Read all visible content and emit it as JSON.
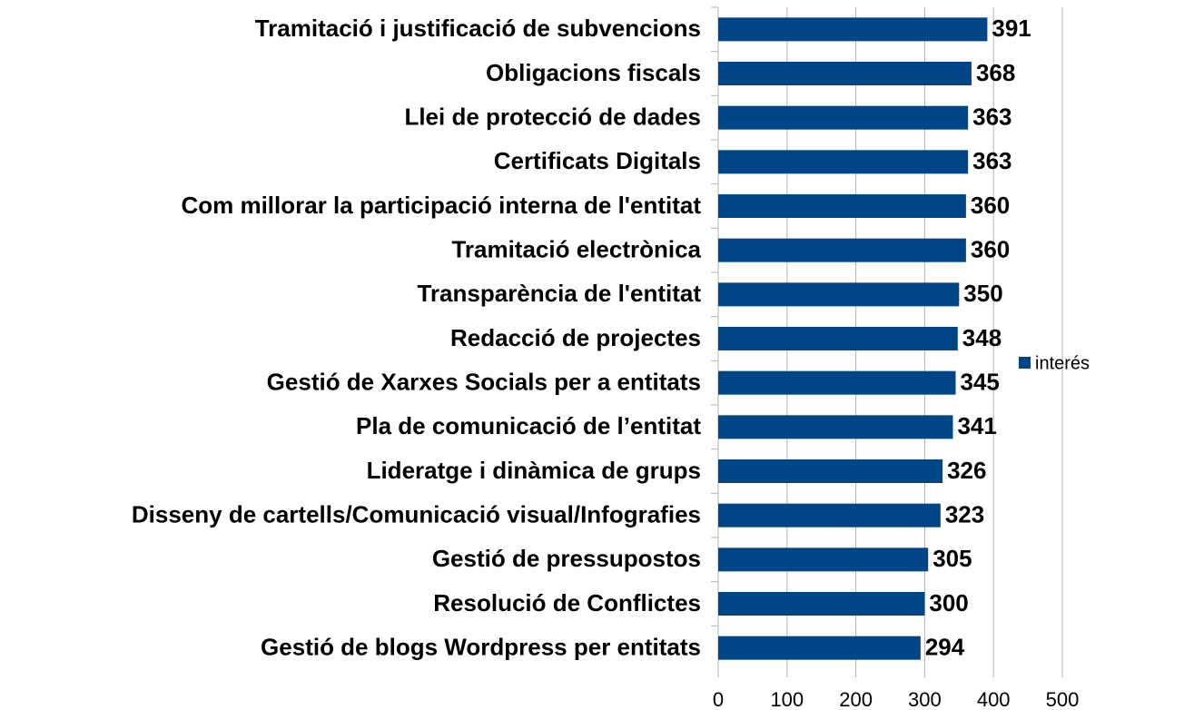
{
  "chart_data": {
    "type": "bar",
    "orientation": "horizontal",
    "categories": [
      "Tramitació i justificació de subvencions",
      "Obligacions fiscals",
      "Llei de protecció de dades",
      "Certificats Digitals",
      "Com millorar la participació interna de l'entitat",
      "Tramitació electrònica",
      "Transparència de l'entitat",
      "Redacció de projectes",
      "Gestió de Xarxes Socials per a entitats",
      "Pla de comunicació de l’entitat",
      "Lideratge i dinàmica de grups",
      "Disseny de cartells/Comunicació visual/Infografies",
      "Gestió de pressupostos",
      "Resolució de Conflictes",
      "Gestió de blogs Wordpress per entitats"
    ],
    "series": [
      {
        "name": "interés",
        "color": "#004586",
        "values": [
          391,
          368,
          363,
          363,
          360,
          360,
          350,
          348,
          345,
          341,
          326,
          323,
          305,
          300,
          294
        ]
      }
    ],
    "xlim": [
      0,
      500
    ],
    "xticks": [
      0,
      100,
      200,
      300,
      400,
      500
    ],
    "grid": true,
    "legend": "right"
  }
}
